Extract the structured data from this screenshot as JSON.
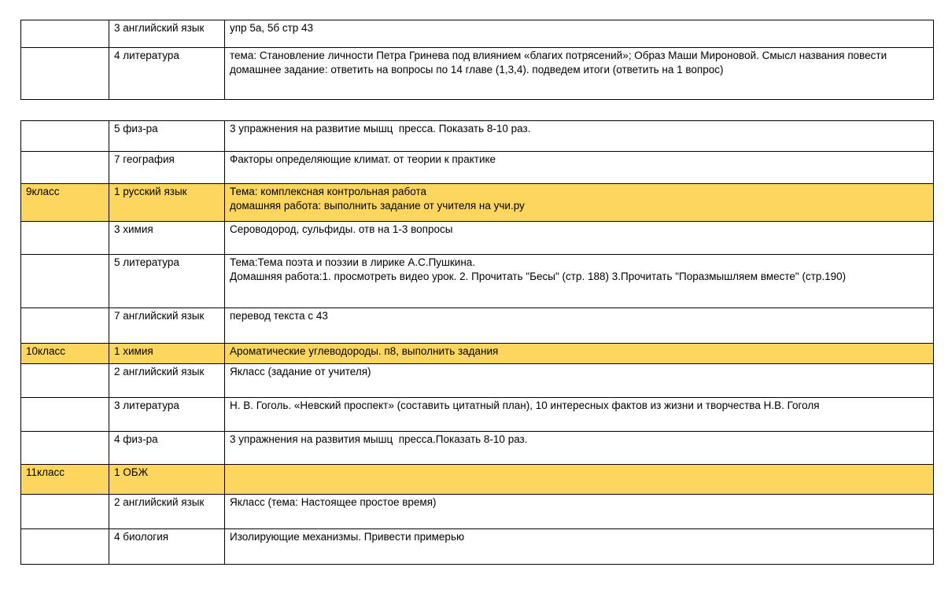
{
  "highlight_color": "#FCD65F",
  "tables": [
    {
      "name": "upper-homework-table",
      "rows": [
        {
          "grade": "",
          "subject": "3 английский язык",
          "highlighted": false,
          "homework": [
            "упр 5а, 5б стр 43"
          ]
        },
        {
          "grade": "",
          "subject": "4 литература",
          "highlighted": false,
          "homework": [
            "тема: Становление личности Петра Гринева под влиянием «благих потрясений»; Образ Маши Мироновой. Смысл названия повести",
            "домашнее задание: ответить на вопросы по 14 главе (1,3,4). подведем итоги (ответить на 1 вопрос)"
          ]
        }
      ]
    },
    {
      "name": "lower-homework-table",
      "rows": [
        {
          "grade": "",
          "subject": "5 физ-ра",
          "highlighted": false,
          "homework": [
            "3 упражнения на развитие мышц  пресса. Показать 8-10 раз."
          ]
        },
        {
          "grade": "",
          "subject": "7 география",
          "highlighted": false,
          "homework": [
            "Факторы определяющие климат. от теории к практике"
          ]
        },
        {
          "grade": "9класс",
          "subject": "1 русский язык",
          "highlighted": true,
          "homework": [
            "Тема: комплексная контрольная работа",
            "домашняя работа: выполнить задание от учителя на учи.ру"
          ]
        },
        {
          "grade": "",
          "subject": "3 химия",
          "highlighted": false,
          "homework": [
            "Сероводород, сульфиды. отв на 1-3 вопросы"
          ]
        },
        {
          "grade": "",
          "subject": "5 литература",
          "highlighted": false,
          "homework": [
            "Тема:Тема поэта и поэзии в лирике А.С.Пушкина.",
            "Домашняя работа:1. просмотреть видео урок. 2. Прочитать \"Бесы\" (стр. 188) 3.Прочитать \"Поразмышляем вместе\" (стр.190)"
          ]
        },
        {
          "grade": "",
          "subject": "7 английский язык",
          "highlighted": false,
          "homework": [
            "перевод текста с 43"
          ]
        },
        {
          "grade": "10класс",
          "subject": "1 химия",
          "highlighted": true,
          "homework": [
            "Ароматические углеводороды. п8, выполнить задания"
          ]
        },
        {
          "grade": "",
          "subject": "2 английский язык",
          "highlighted": false,
          "homework": [
            "Якласс (задание от учителя)"
          ]
        },
        {
          "grade": "",
          "subject": "3 литература",
          "highlighted": false,
          "homework": [
            "Н. В. Гоголь. «Невский проспект» (составить цитатный план), 10 интересных фактов из жизни и творчества Н.В. Гоголя"
          ]
        },
        {
          "grade": "",
          "subject": "4 физ-ра",
          "highlighted": false,
          "homework": [
            "3 упражнения на развития мышц  пресса.Показать 8-10 раз."
          ]
        },
        {
          "grade": "11класс",
          "subject": "1 ОБЖ",
          "highlighted": true,
          "homework": []
        },
        {
          "grade": "",
          "subject": "2 английский язык",
          "highlighted": false,
          "homework": [
            "Якласс (тема: Настоящее простое время)"
          ]
        },
        {
          "grade": "",
          "subject": "4 биология",
          "highlighted": false,
          "homework": [
            "Изолирующие механизмы. Привести примерью"
          ]
        }
      ]
    }
  ]
}
